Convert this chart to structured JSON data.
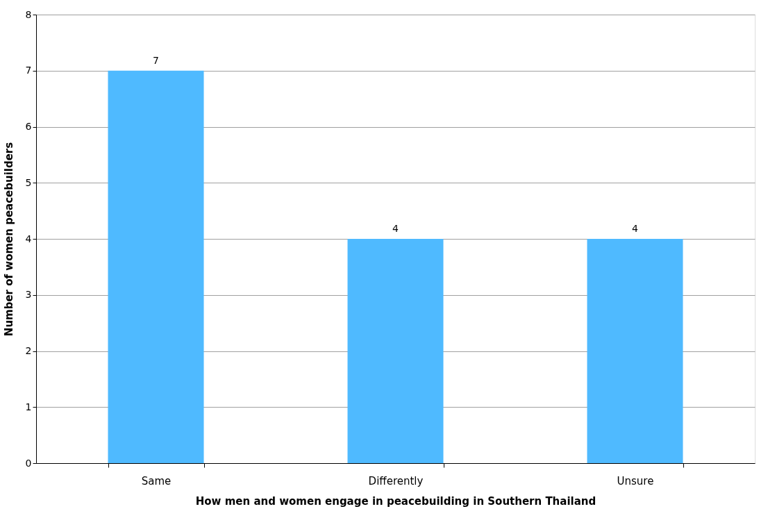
{
  "chart_data": {
    "type": "bar",
    "xlabel": "How men and women engage in peacebuilding in Southern Thailand",
    "ylabel": "Number of women peacebuilders",
    "categories": [
      "Same",
      "Differently",
      "Unsure"
    ],
    "values": [
      7,
      4,
      4
    ],
    "color": "#4fbaff",
    "ylim": [
      0,
      8
    ],
    "yticks": [
      0,
      1,
      2,
      3,
      4,
      5,
      6,
      7,
      8
    ],
    "grid": "y",
    "data_labels": true
  }
}
